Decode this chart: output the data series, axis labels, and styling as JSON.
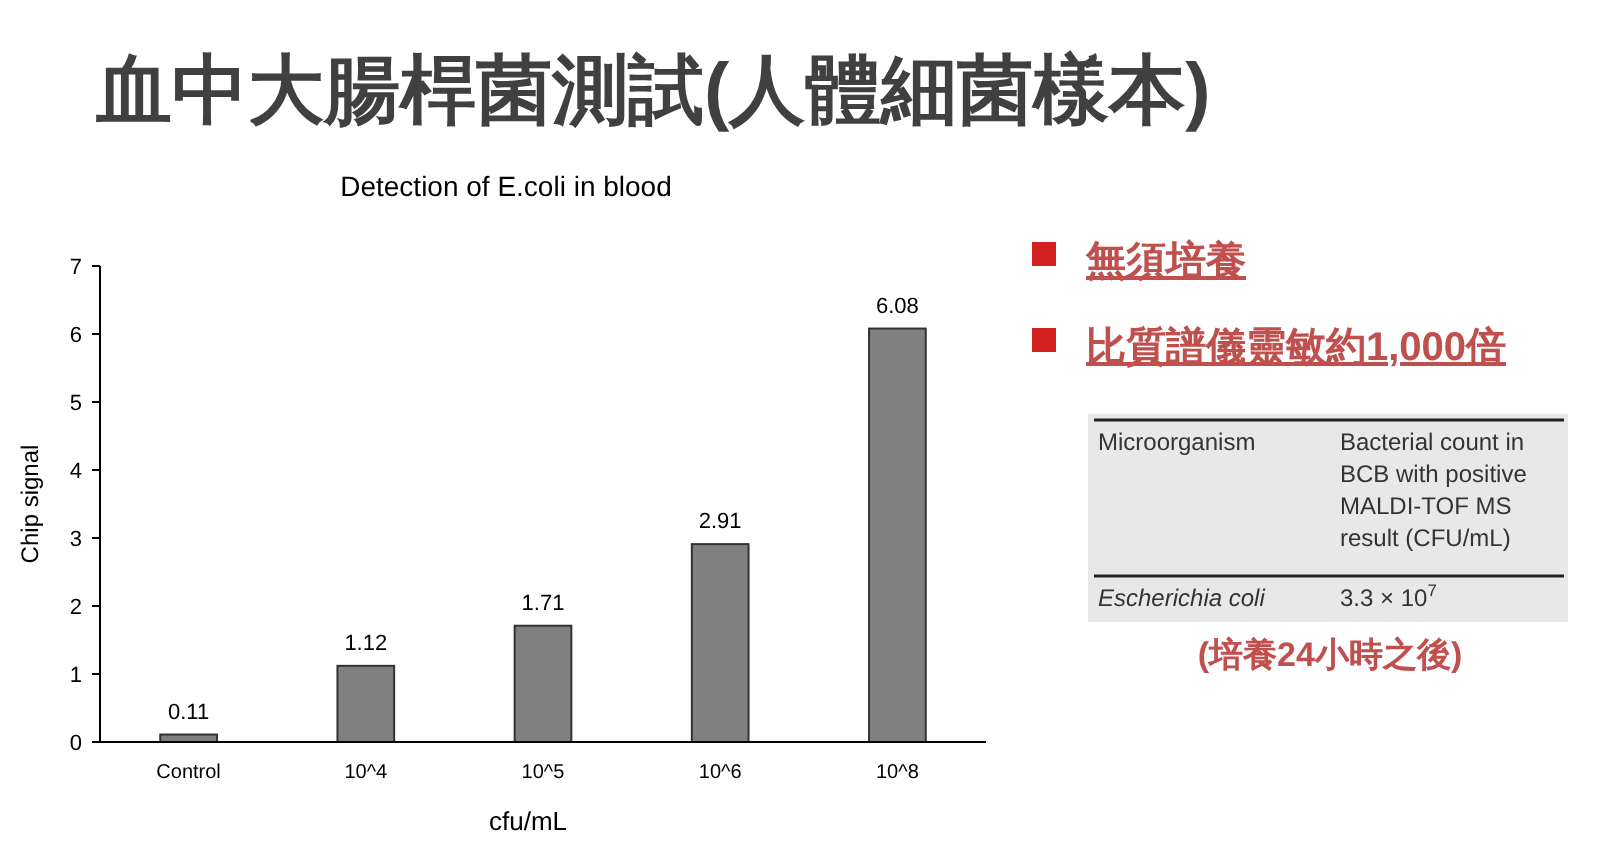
{
  "chart_data": {
    "type": "bar",
    "title": "血中大腸桿菌測試(人體細菌樣本)",
    "subtitle": "Detection of E.coli in blood",
    "xlabel": "cfu/mL",
    "ylabel": "Chip signal",
    "categories": [
      "Control",
      "10^4",
      "10^5",
      "10^6",
      "10^8"
    ],
    "values": [
      0.11,
      1.12,
      1.71,
      2.91,
      6.08
    ],
    "color": "#808080",
    "ylim": [
      0,
      7
    ],
    "yticks": [
      0,
      1,
      2,
      3,
      4,
      5,
      6,
      7
    ],
    "grid": false,
    "data_labels": true,
    "annotations": [
      "無須培養",
      "比質譜儀靈敏約1,000倍",
      "Microorganism",
      "Bacterial count in BCB with positive MALDI-TOF MS result (CFU/mL)",
      "Escherichia coli",
      "3.3 × 10$^{7}$",
      "(培養24小時之後)"
    ]
  }
}
